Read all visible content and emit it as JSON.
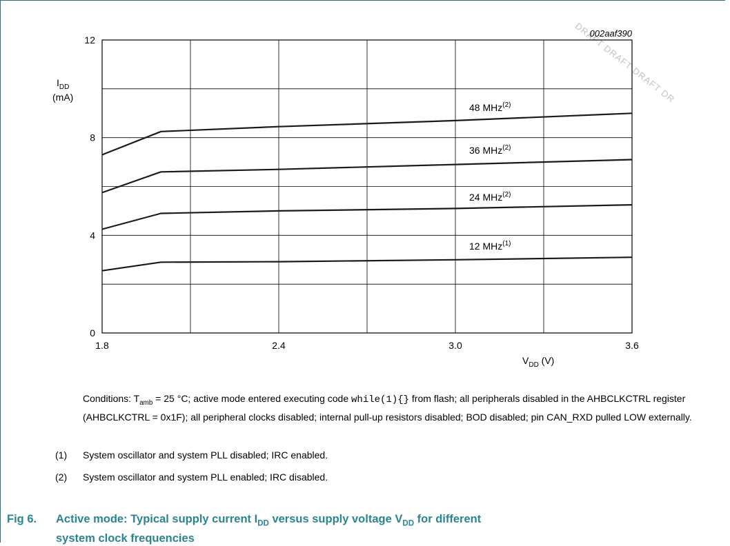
{
  "watermark": "DRAFT DRAFT DRAFT DR",
  "figure_id": "002aaf390",
  "chart_data": {
    "type": "line",
    "title": "",
    "ylabel_main": "I",
    "ylabel_sub": "DD",
    "ylabel_unit": "(mA)",
    "xlabel_main": "V",
    "xlabel_sub": "DD",
    "xlabel_unit": " (V)",
    "xlim": [
      1.8,
      3.6
    ],
    "ylim": [
      0,
      12
    ],
    "x_ticks": [
      1.8,
      2.4,
      3.0,
      3.6
    ],
    "x_tick_labels": [
      "1.8",
      "2.4",
      "3.0",
      "3.6"
    ],
    "y_ticks": [
      0,
      4,
      8,
      12
    ],
    "y_tick_labels": [
      "0",
      "4",
      "8",
      "12"
    ],
    "grid": true,
    "series": [
      {
        "name": "48 MHz",
        "note": "(2)",
        "x": [
          1.8,
          2.0,
          2.4,
          3.0,
          3.6
        ],
        "y": [
          7.3,
          8.25,
          8.45,
          8.7,
          9.0
        ]
      },
      {
        "name": "36 MHz",
        "note": "(2)",
        "x": [
          1.8,
          2.0,
          2.4,
          3.0,
          3.6
        ],
        "y": [
          5.75,
          6.6,
          6.7,
          6.9,
          7.1
        ]
      },
      {
        "name": "24 MHz",
        "note": "(2)",
        "x": [
          1.8,
          2.0,
          2.4,
          3.0,
          3.6
        ],
        "y": [
          4.25,
          4.9,
          5.0,
          5.1,
          5.25
        ]
      },
      {
        "name": "12 MHz",
        "note": "(1)",
        "x": [
          1.8,
          2.0,
          2.4,
          3.0,
          3.6
        ],
        "y": [
          2.55,
          2.9,
          2.92,
          3.0,
          3.1
        ]
      }
    ]
  },
  "conditions": {
    "prefix": "Conditions: T",
    "sub": "amb",
    "part1": " = 25 °C; active mode entered executing code ",
    "code": "while(1){}",
    "part2": " from flash; all peripherals disabled in the AHBCLKCTRL register (AHBCLKCTRL = 0x1F); all peripheral clocks disabled; internal pull-up resistors disabled; BOD disabled; pin CAN_RXD pulled LOW externally."
  },
  "notes": [
    {
      "num": "(1)",
      "text": "System oscillator and system PLL disabled; IRC enabled."
    },
    {
      "num": "(2)",
      "text": "System oscillator and system PLL enabled; IRC disabled."
    }
  ],
  "caption": {
    "fig": "Fig 6.",
    "t1": "Active mode: Typical supply current I",
    "s1": "DD",
    "t2": " versus supply voltage V",
    "s2": "DD",
    "t3": " for different",
    "line2": "system clock frequencies"
  }
}
